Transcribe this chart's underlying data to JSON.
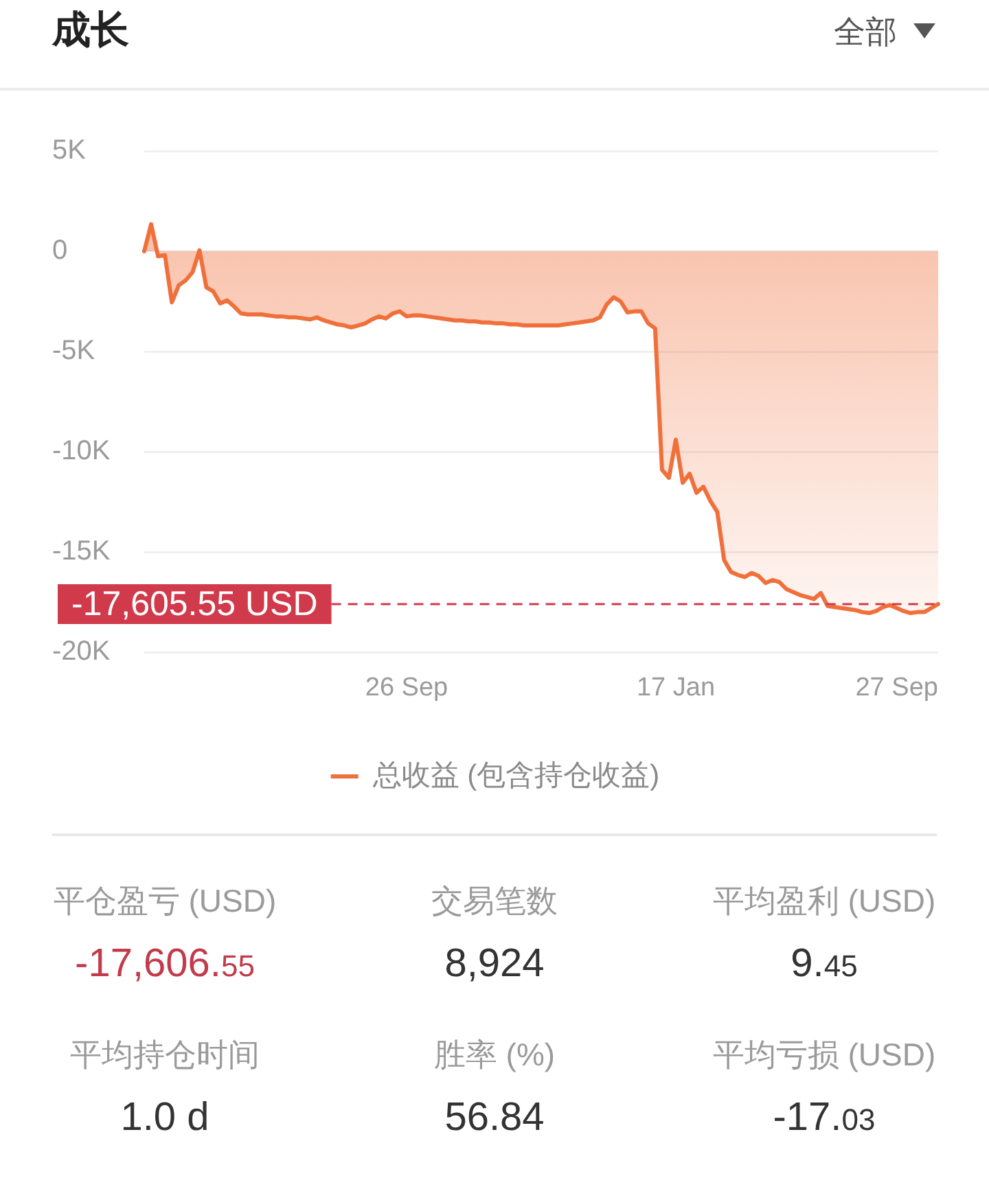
{
  "chart_data": {
    "type": "area",
    "title": "成长",
    "categories": [
      null,
      null,
      null,
      null,
      null,
      null,
      null,
      null,
      null,
      null,
      null,
      null,
      null,
      null,
      null,
      null,
      null,
      null,
      null,
      null,
      null,
      null,
      null,
      null,
      null,
      null,
      null,
      null,
      null,
      null,
      null,
      null,
      null,
      null,
      null,
      null,
      null,
      null,
      "26 Sep",
      null,
      null,
      null,
      null,
      null,
      null,
      null,
      null,
      null,
      null,
      null,
      null,
      null,
      null,
      null,
      null,
      null,
      null,
      null,
      null,
      null,
      null,
      null,
      null,
      null,
      null,
      null,
      null,
      null,
      null,
      null,
      null,
      null,
      null,
      null,
      null,
      null,
      null,
      "17 Jan",
      null,
      null,
      null,
      null,
      null,
      null,
      null,
      null,
      null,
      null,
      null,
      null,
      null,
      null,
      null,
      null,
      null,
      null,
      null,
      null,
      null,
      null,
      null,
      null,
      null,
      null,
      null,
      null,
      null,
      null,
      null,
      "27 Sep",
      null,
      null,
      null,
      null,
      null,
      null
    ],
    "series": [
      {
        "name": "总收益 (包含持仓收益)",
        "color": "#f0703c",
        "values": [
          0,
          1350,
          -250,
          -200,
          -2550,
          -1700,
          -1450,
          -1050,
          50,
          -1800,
          -2000,
          -2600,
          -2450,
          -2750,
          -3100,
          -3150,
          -3150,
          -3150,
          -3200,
          -3250,
          -3250,
          -3300,
          -3300,
          -3350,
          -3400,
          -3300,
          -3450,
          -3550,
          -3650,
          -3700,
          -3800,
          -3700,
          -3600,
          -3400,
          -3250,
          -3350,
          -3100,
          -3000,
          -3250,
          -3200,
          -3200,
          -3250,
          -3300,
          -3350,
          -3400,
          -3450,
          -3450,
          -3500,
          -3500,
          -3550,
          -3550,
          -3600,
          -3600,
          -3650,
          -3650,
          -3700,
          -3700,
          -3700,
          -3700,
          -3700,
          -3700,
          -3650,
          -3600,
          -3550,
          -3500,
          -3450,
          -3300,
          -2650,
          -2300,
          -2500,
          -3050,
          -3000,
          -3000,
          -3600,
          -3850,
          -10900,
          -11300,
          -9400,
          -11550,
          -11100,
          -12050,
          -11750,
          -12450,
          -13000,
          -15400,
          -16000,
          -16150,
          -16250,
          -16050,
          -16200,
          -16550,
          -16400,
          -16500,
          -16850,
          -17000,
          -17150,
          -17250,
          -17350,
          -17050,
          -17700,
          -17750,
          -17800,
          -17850,
          -17900,
          -18000,
          -18050,
          -17950,
          -17750,
          -17650,
          -17800,
          -17950,
          -18050,
          -18000,
          -18000,
          -17800,
          -17600
        ]
      }
    ],
    "ylim": [
      -20000,
      5000
    ],
    "yticks": [
      {
        "value": -20000,
        "label": "-20K"
      },
      {
        "value": -15000,
        "label": "-15K"
      },
      {
        "value": -10000,
        "label": "-10K"
      },
      {
        "value": -5000,
        "label": "-5K"
      },
      0,
      {
        "value": 5000,
        "label": "5K"
      }
    ],
    "grid": "y",
    "legend": "bottom",
    "marker": "none",
    "ref_lines": [
      {
        "axis": "y",
        "value": -17605.55,
        "label": "-17,605.55 USD",
        "color": "#d03a4b",
        "line_style": "dashed"
      }
    ],
    "annotations": [
      "全部",
      "平仓盈亏 (USD)",
      "-17,606.55",
      "交易笔数",
      "8,924",
      "平均盈利 (USD)",
      "9.45",
      "平均持仓时间",
      "1.0 d",
      "胜率 (%)",
      "56.84",
      "平均亏损 (USD)",
      "-17.03"
    ]
  }
}
